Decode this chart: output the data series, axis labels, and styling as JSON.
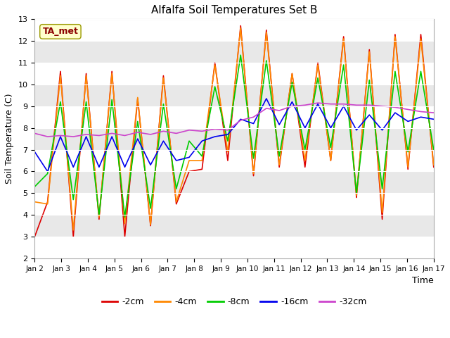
{
  "title": "Alfalfa Soil Temperatures Set B",
  "xlabel": "Time",
  "ylabel": "Soil Temperature (C)",
  "ylim": [
    2.0,
    13.0
  ],
  "yticks": [
    2.0,
    3.0,
    4.0,
    5.0,
    6.0,
    7.0,
    8.0,
    9.0,
    10.0,
    11.0,
    12.0,
    13.0
  ],
  "xtick_labels": [
    "Jan 2",
    "Jan 3",
    "Jan 4",
    "Jan 5",
    "Jan 6",
    "Jan 7",
    "Jan 8",
    "Jan 9",
    "Jan 10",
    "Jan 11",
    "Jan 12",
    "Jan 13",
    "Jan 14",
    "Jan 15",
    "Jan 16",
    "Jan 17"
  ],
  "fig_bg_color": "#ffffff",
  "plot_bg_color": "#ffffff",
  "band_color": "#e8e8e8",
  "annotation_text": "TA_met",
  "annotation_color": "#8b0000",
  "annotation_bg": "#ffffcc",
  "annotation_edge": "#999900",
  "series": {
    "2cm": {
      "color": "#dd0000",
      "linewidth": 1.2,
      "values": [
        3.0,
        4.6,
        10.6,
        3.0,
        10.5,
        3.8,
        10.6,
        3.0,
        9.35,
        3.5,
        10.4,
        4.5,
        6.0,
        6.1,
        11.0,
        6.5,
        12.7,
        5.8,
        12.5,
        6.2,
        10.5,
        6.2,
        11.0,
        6.5,
        12.2,
        4.8,
        11.6,
        3.8,
        12.3,
        6.1,
        12.3,
        6.2
      ]
    },
    "4cm": {
      "color": "#ff8800",
      "linewidth": 1.2,
      "values": [
        4.6,
        4.5,
        10.4,
        3.3,
        10.4,
        3.9,
        10.5,
        3.6,
        9.4,
        3.55,
        10.3,
        4.6,
        6.5,
        6.5,
        10.9,
        6.9,
        12.6,
        5.9,
        12.4,
        6.3,
        10.5,
        6.5,
        10.9,
        6.5,
        12.1,
        4.9,
        11.5,
        4.1,
        12.2,
        6.2,
        12.1,
        6.3
      ]
    },
    "8cm": {
      "color": "#00cc00",
      "linewidth": 1.2,
      "values": [
        5.3,
        5.9,
        9.2,
        4.7,
        9.2,
        4.0,
        9.3,
        3.9,
        8.3,
        4.3,
        9.1,
        5.2,
        7.4,
        6.7,
        9.9,
        7.4,
        11.35,
        6.6,
        11.1,
        6.7,
        10.1,
        7.0,
        10.3,
        7.1,
        10.9,
        5.0,
        10.2,
        5.2,
        10.6,
        6.9,
        10.6,
        7.0
      ]
    },
    "16cm": {
      "color": "#0000ee",
      "linewidth": 1.2,
      "values": [
        6.9,
        6.0,
        7.6,
        6.2,
        7.6,
        6.2,
        7.6,
        6.2,
        7.5,
        6.3,
        7.4,
        6.5,
        6.65,
        7.4,
        7.6,
        7.7,
        8.4,
        8.2,
        9.35,
        8.15,
        9.2,
        8.0,
        9.1,
        8.0,
        9.0,
        7.9,
        8.6,
        7.9,
        8.7,
        8.3,
        8.5,
        8.4
      ]
    },
    "32cm": {
      "color": "#cc44cc",
      "linewidth": 1.2,
      "values": [
        7.75,
        7.6,
        7.65,
        7.6,
        7.7,
        7.65,
        7.75,
        7.65,
        7.8,
        7.7,
        7.85,
        7.75,
        7.9,
        7.85,
        7.95,
        7.9,
        8.35,
        8.5,
        8.9,
        8.8,
        9.0,
        9.05,
        9.15,
        9.1,
        9.1,
        9.05,
        9.05,
        9.0,
        8.95,
        8.85,
        8.75,
        8.7
      ]
    }
  },
  "legend_labels": [
    "-2cm",
    "-4cm",
    "-8cm",
    "-16cm",
    "-32cm"
  ],
  "legend_series_keys": [
    "2cm",
    "4cm",
    "8cm",
    "16cm",
    "32cm"
  ]
}
